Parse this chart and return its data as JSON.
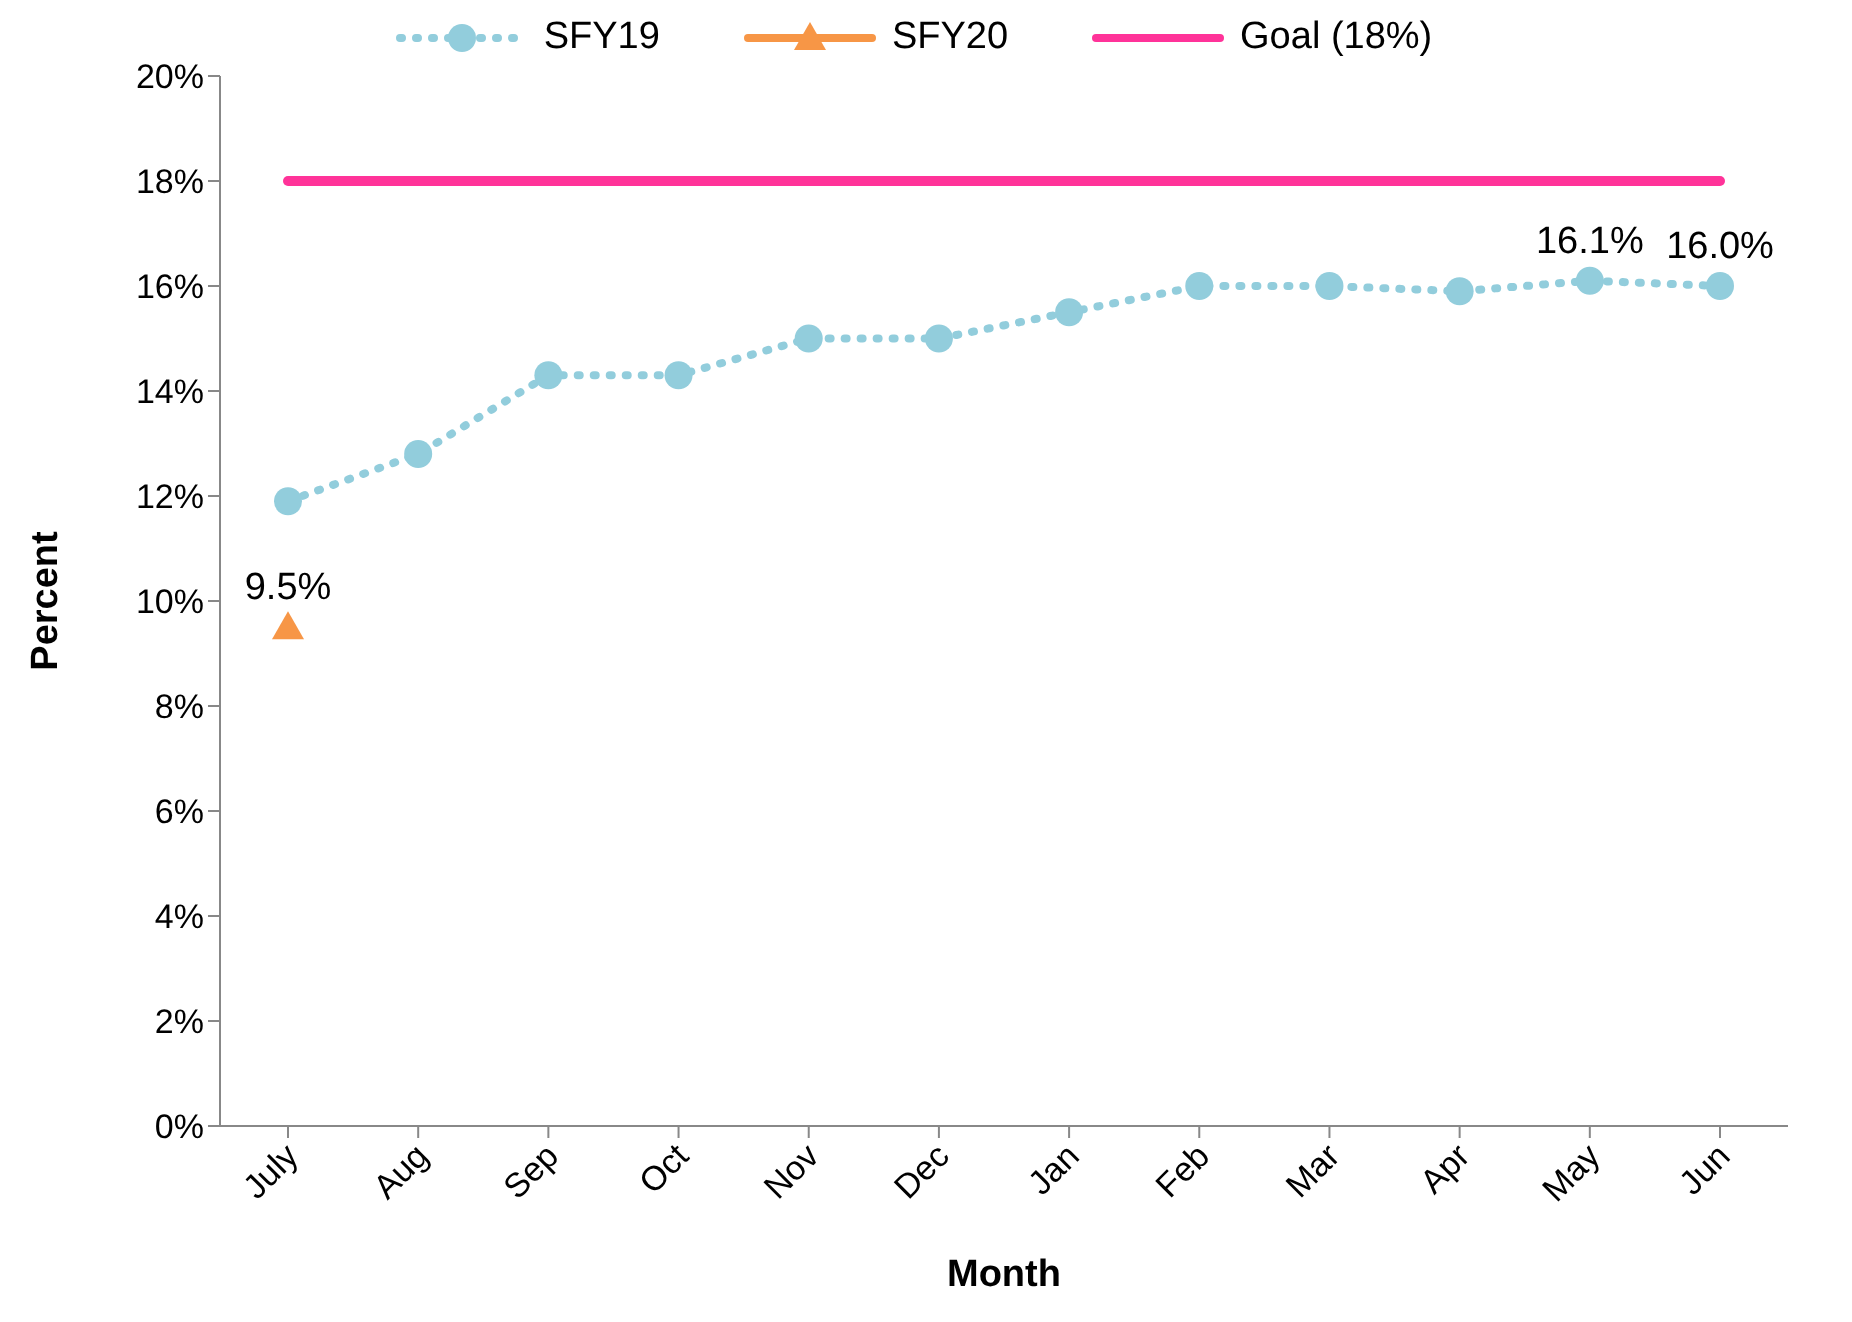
{
  "chart_data": {
    "type": "line",
    "xlabel": "Month",
    "ylabel": "Percent",
    "categories": [
      "July",
      "Aug",
      "Sep",
      "Oct",
      "Nov",
      "Dec",
      "Jan",
      "Feb",
      "Mar",
      "Apr",
      "May",
      "Jun"
    ],
    "series": [
      {
        "name": "SFY19",
        "color": "#92cddc",
        "marker": "circle",
        "line_style": "dotted",
        "values": [
          11.9,
          12.8,
          14.3,
          14.3,
          15.0,
          15.0,
          15.5,
          16.0,
          16.0,
          15.9,
          16.1,
          16.0
        ],
        "value_labels": [
          null,
          null,
          null,
          null,
          null,
          null,
          null,
          null,
          null,
          null,
          "16.1%",
          "16.0%"
        ]
      },
      {
        "name": "SFY20",
        "color": "#f79646",
        "marker": "triangle",
        "line_style": "solid",
        "values": [
          9.5,
          null,
          null,
          null,
          null,
          null,
          null,
          null,
          null,
          null,
          null,
          null
        ],
        "value_labels": [
          "9.5%",
          null,
          null,
          null,
          null,
          null,
          null,
          null,
          null,
          null,
          null,
          null
        ]
      },
      {
        "name": "Goal (18%)",
        "color": "#ff3399",
        "marker": "none",
        "line_style": "solid",
        "values": [
          18,
          18,
          18,
          18,
          18,
          18,
          18,
          18,
          18,
          18,
          18,
          18
        ]
      }
    ],
    "ylim": [
      0,
      20
    ],
    "yticks": [
      {
        "value": 0,
        "label": "0%"
      },
      {
        "value": 2,
        "label": "2%"
      },
      {
        "value": 4,
        "label": "4%"
      },
      {
        "value": 6,
        "label": "6%"
      },
      {
        "value": 8,
        "label": "8%"
      },
      {
        "value": 10,
        "label": "10%"
      },
      {
        "value": 12,
        "label": "12%"
      },
      {
        "value": 14,
        "label": "14%"
      },
      {
        "value": 16,
        "label": "16%"
      },
      {
        "value": 18,
        "label": "18%"
      },
      {
        "value": 20,
        "label": "20%"
      }
    ],
    "grid": false,
    "legend": "top"
  }
}
